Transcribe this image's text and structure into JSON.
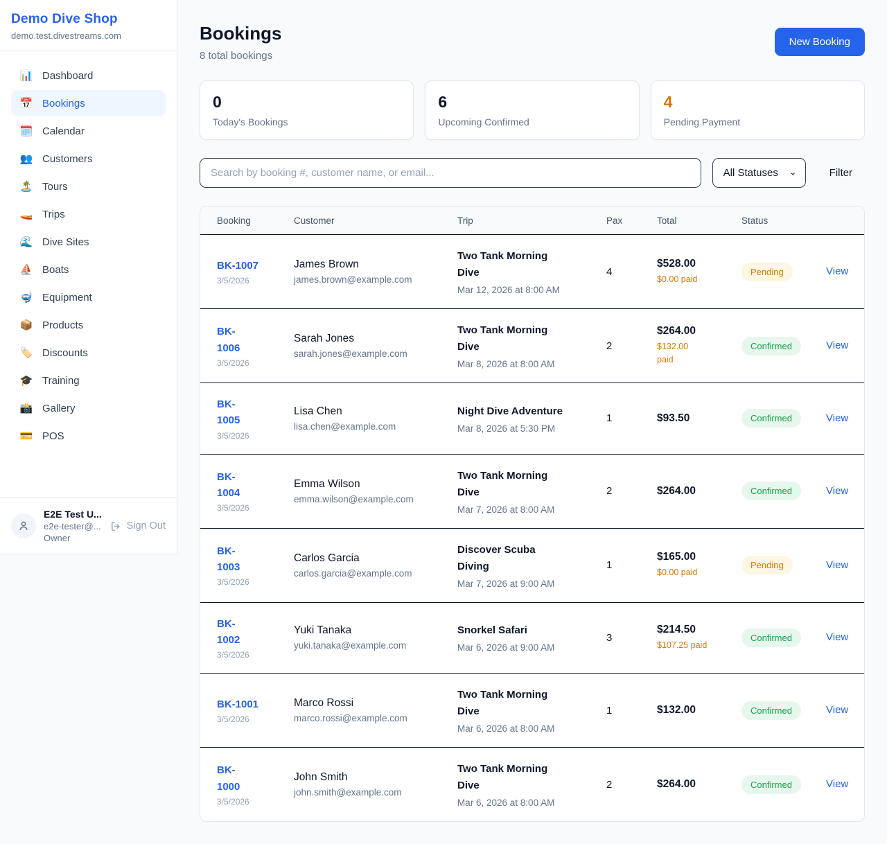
{
  "sidebar": {
    "title": "Demo Dive Shop",
    "domain": "demo.test.divestreams.com",
    "items": [
      {
        "icon": "📊",
        "icon_name": "dashboard-icon",
        "label": "Dashboard",
        "active": false
      },
      {
        "icon": "📅",
        "icon_name": "bookings-icon",
        "label": "Bookings",
        "active": true
      },
      {
        "icon": "🗓️",
        "icon_name": "calendar-icon",
        "label": "Calendar",
        "active": false
      },
      {
        "icon": "👥",
        "icon_name": "customers-icon",
        "label": "Customers",
        "active": false
      },
      {
        "icon": "🏝️",
        "icon_name": "tours-icon",
        "label": "Tours",
        "active": false
      },
      {
        "icon": "🚤",
        "icon_name": "trips-icon",
        "label": "Trips",
        "active": false
      },
      {
        "icon": "🌊",
        "icon_name": "dive-sites-icon",
        "label": "Dive Sites",
        "active": false
      },
      {
        "icon": "⛵",
        "icon_name": "boats-icon",
        "label": "Boats",
        "active": false
      },
      {
        "icon": "🤿",
        "icon_name": "equipment-icon",
        "label": "Equipment",
        "active": false
      },
      {
        "icon": "📦",
        "icon_name": "products-icon",
        "label": "Products",
        "active": false
      },
      {
        "icon": "🏷️",
        "icon_name": "discounts-icon",
        "label": "Discounts",
        "active": false
      },
      {
        "icon": "🎓",
        "icon_name": "training-icon",
        "label": "Training",
        "active": false
      },
      {
        "icon": "📸",
        "icon_name": "gallery-icon",
        "label": "Gallery",
        "active": false
      },
      {
        "icon": "💳",
        "icon_name": "pos-icon",
        "label": "POS",
        "active": false
      }
    ],
    "user": {
      "name": "E2E Test U...",
      "email": "e2e-tester@...",
      "role": "Owner",
      "signout_label": "Sign Out"
    }
  },
  "header": {
    "title": "Bookings",
    "subtitle": "8 total bookings",
    "new_booking_label": "New Booking"
  },
  "stats": [
    {
      "value": "0",
      "label": "Today's Bookings",
      "color": "#0f172a"
    },
    {
      "value": "6",
      "label": "Upcoming Confirmed",
      "color": "#0f172a"
    },
    {
      "value": "4",
      "label": "Pending Payment",
      "color": "#d97706"
    }
  ],
  "controls": {
    "search_placeholder": "Search by booking #, customer name, or email...",
    "status_filter_value": "All Statuses",
    "filter_label": "Filter"
  },
  "table": {
    "columns": [
      "Booking",
      "Customer",
      "Trip",
      "Pax",
      "Total",
      "Status"
    ],
    "view_label": "View",
    "rows": [
      {
        "id": "BK-1007",
        "id_display": "BK-1007",
        "date": "3/5/2026",
        "customer": "James Brown",
        "email": "james.brown@example.com",
        "trip": "Two Tank Morning\nDive",
        "when": "Mar 12, 2026 at 8:00 AM",
        "pax": "4",
        "total": "$528.00",
        "paid": "$0.00 paid",
        "status": "Pending",
        "status_type": "pending"
      },
      {
        "id": "BK-1006",
        "id_display": "BK-\n1006",
        "date": "3/5/2026",
        "customer": "Sarah Jones",
        "email": "sarah.jones@example.com",
        "trip": "Two Tank Morning\nDive",
        "when": "Mar 8, 2026 at 8:00 AM",
        "pax": "2",
        "total": "$264.00",
        "paid": "$132.00\npaid",
        "status": "Confirmed",
        "status_type": "confirmed"
      },
      {
        "id": "BK-1005",
        "id_display": "BK-\n1005",
        "date": "3/5/2026",
        "customer": "Lisa Chen",
        "email": "lisa.chen@example.com",
        "trip": "Night Dive Adventure",
        "when": "Mar 8, 2026 at 5:30 PM",
        "pax": "1",
        "total": "$93.50",
        "paid": "",
        "status": "Confirmed",
        "status_type": "confirmed"
      },
      {
        "id": "BK-1004",
        "id_display": "BK-\n1004",
        "date": "3/5/2026",
        "customer": "Emma Wilson",
        "email": "emma.wilson@example.com",
        "trip": "Two Tank Morning\nDive",
        "when": "Mar 7, 2026 at 8:00 AM",
        "pax": "2",
        "total": "$264.00",
        "paid": "",
        "status": "Confirmed",
        "status_type": "confirmed"
      },
      {
        "id": "BK-1003",
        "id_display": "BK-\n1003",
        "date": "3/5/2026",
        "customer": "Carlos Garcia",
        "email": "carlos.garcia@example.com",
        "trip": "Discover Scuba\nDiving",
        "when": "Mar 7, 2026 at 9:00 AM",
        "pax": "1",
        "total": "$165.00",
        "paid": "$0.00 paid",
        "status": "Pending",
        "status_type": "pending"
      },
      {
        "id": "BK-1002",
        "id_display": "BK-\n1002",
        "date": "3/5/2026",
        "customer": "Yuki Tanaka",
        "email": "yuki.tanaka@example.com",
        "trip": "Snorkel Safari",
        "when": "Mar 6, 2026 at 9:00 AM",
        "pax": "3",
        "total": "$214.50",
        "paid": "$107.25 paid",
        "status": "Confirmed",
        "status_type": "confirmed"
      },
      {
        "id": "BK-1001",
        "id_display": "BK-1001",
        "date": "3/5/2026",
        "customer": "Marco Rossi",
        "email": "marco.rossi@example.com",
        "trip": "Two Tank Morning\nDive",
        "when": "Mar 6, 2026 at 8:00 AM",
        "pax": "1",
        "total": "$132.00",
        "paid": "",
        "status": "Confirmed",
        "status_type": "confirmed"
      },
      {
        "id": "BK-1000",
        "id_display": "BK-\n1000",
        "date": "3/5/2026",
        "customer": "John Smith",
        "email": "john.smith@example.com",
        "trip": "Two Tank Morning\nDive",
        "when": "Mar 6, 2026 at 8:00 AM",
        "pax": "2",
        "total": "$264.00",
        "paid": "",
        "status": "Confirmed",
        "status_type": "confirmed"
      }
    ]
  },
  "colors": {
    "accent": "#2563eb",
    "pending_text": "#d97706",
    "pending_bg": "#fdf6e3",
    "confirmed_text": "#16a34a",
    "confirmed_bg": "#e7f7ed",
    "row_border": "#0f172a",
    "card_border": "#e2e8f0",
    "page_bg": "#f8fafc"
  }
}
